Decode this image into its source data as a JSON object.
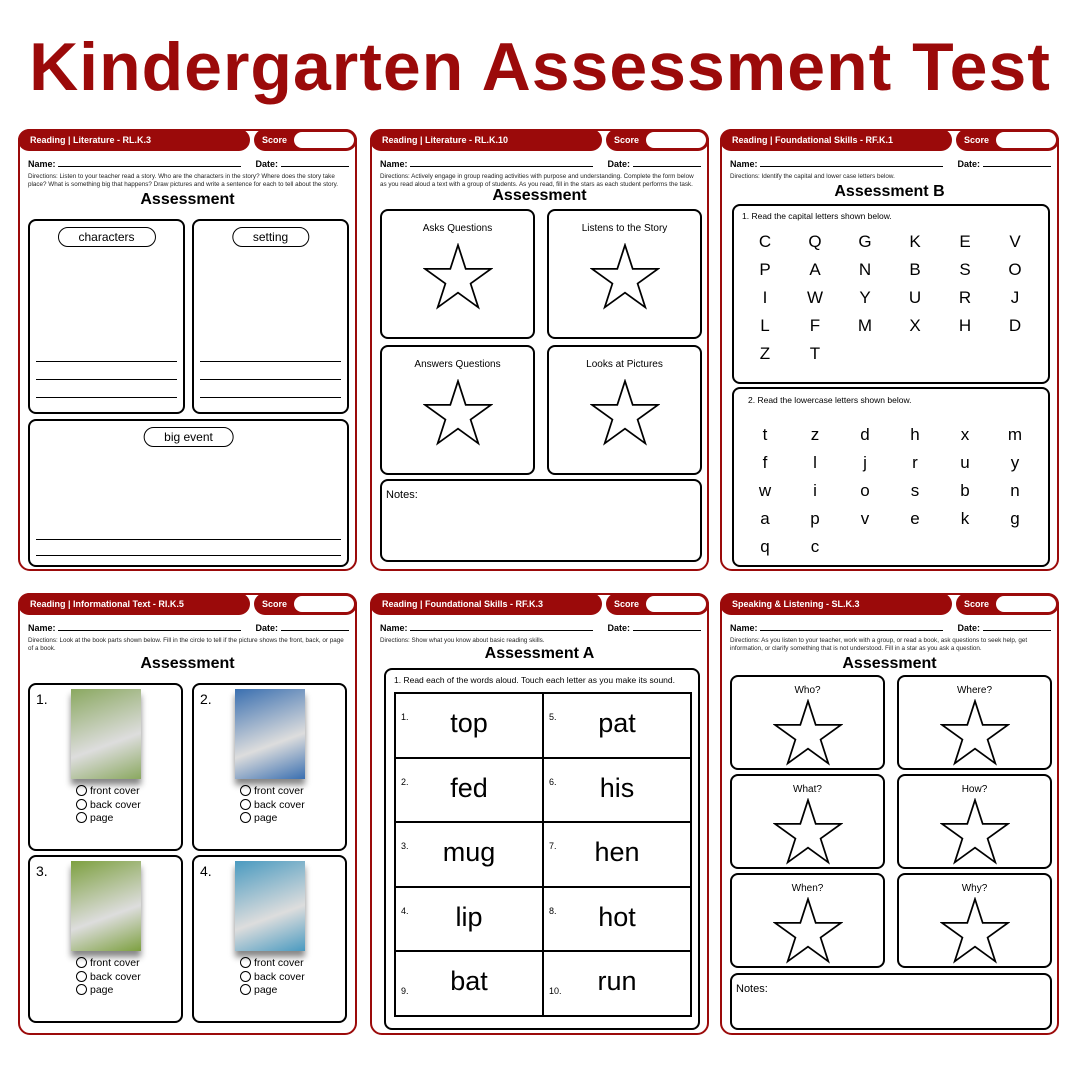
{
  "title": "Kindergarten Assessment Test",
  "colors": {
    "brand": "#9b0a0a"
  },
  "common": {
    "name_label": "Name:",
    "date_label": "Date:",
    "score_label": "Score"
  },
  "panels": [
    {
      "header": "Reading | Literature - RL.K.3",
      "directions": "Directions: Listen to your teacher read a story.  Who are the characters in the story?  Where does the story take place?  What is something big that happens?  Draw pictures and write a sentence for each to tell about the story.",
      "heading": "Assessment",
      "boxes": [
        "characters",
        "setting",
        "big event"
      ]
    },
    {
      "header": "Reading | Literature - RL.K.10",
      "directions": "Directions: Actively engage in group reading activities with purpose and understanding. Complete the form below as you read aloud a text with a group of students. As you read, fill in the stars as each student performs the task.",
      "heading": "Assessment",
      "stars": [
        "Asks Questions",
        "Listens to the Story",
        "Answers Questions",
        "Looks at Pictures"
      ],
      "notes": "Notes:"
    },
    {
      "header": "Reading | Foundational Skills - RF.K.1",
      "directions": "Directions: Identify the capital and lower case letters below.",
      "heading": "Assessment B",
      "q1": "1. Read the capital letters shown below.",
      "capitals": [
        "C",
        "Q",
        "G",
        "K",
        "E",
        "V",
        "P",
        "A",
        "N",
        "B",
        "S",
        "O",
        "I",
        "W",
        "Y",
        "U",
        "R",
        "J",
        "L",
        "F",
        "M",
        "X",
        "H",
        "D",
        "Z",
        "T"
      ],
      "q2": "2. Read the lowercase letters shown below.",
      "lowercase": [
        "t",
        "z",
        "d",
        "h",
        "x",
        "m",
        "f",
        "l",
        "j",
        "r",
        "u",
        "y",
        "w",
        "i",
        "o",
        "s",
        "b",
        "n",
        "a",
        "p",
        "v",
        "e",
        "k",
        "g",
        "q",
        "c"
      ]
    },
    {
      "header": "Reading | Informational Text - RI.K.5",
      "directions": "Directions: Look at the book parts shown below.  Fill in the circle to tell if the picture shows the front, back, or page of a book.",
      "heading": "Assessment",
      "items": [
        {
          "num": "1.",
          "color": "#8aa860"
        },
        {
          "num": "2.",
          "color": "#3a6fb0"
        },
        {
          "num": "3.",
          "color": "#7da040"
        },
        {
          "num": "4.",
          "color": "#4a9ac0"
        }
      ],
      "options": [
        "front cover",
        "back cover",
        "page"
      ]
    },
    {
      "header": "Reading | Foundational Skills - RF.K.3",
      "directions": "Directions: Show what you know about basic reading skills.",
      "heading": "Assessment A",
      "instruction": "1. Read each of the words aloud.  Touch each letter as you make its sound.",
      "words": [
        {
          "n": "1.",
          "w": "top"
        },
        {
          "n": "5.",
          "w": "pat"
        },
        {
          "n": "2.",
          "w": "fed"
        },
        {
          "n": "6.",
          "w": "his"
        },
        {
          "n": "3.",
          "w": "mug"
        },
        {
          "n": "7.",
          "w": "hen"
        },
        {
          "n": "4.",
          "w": "lip"
        },
        {
          "n": "8.",
          "w": "hot"
        },
        {
          "n": "9.",
          "w": "bat"
        },
        {
          "n": "10.",
          "w": "run"
        }
      ]
    },
    {
      "header": "Speaking & Listening - SL.K.3",
      "directions": "Directions: As you listen to your teacher, work with a group, or read a book, ask questions to seek help, get information, or clarify something that is not understood.  Fill in a star as you ask a question.",
      "heading": "Assessment",
      "stars": [
        "Who?",
        "Where?",
        "What?",
        "How?",
        "When?",
        "Why?"
      ],
      "notes": "Notes:"
    }
  ]
}
